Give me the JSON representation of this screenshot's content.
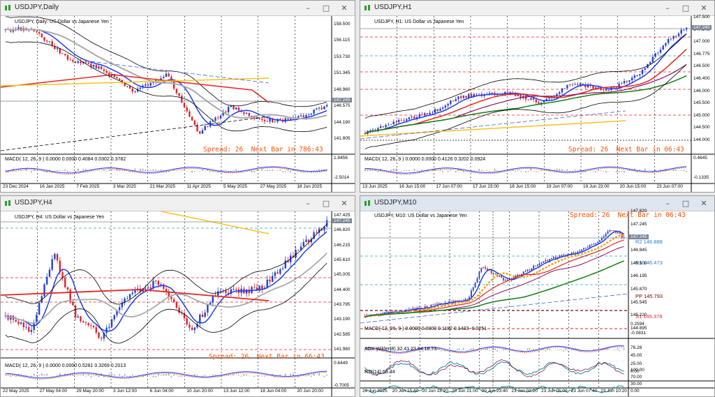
{
  "colors": {
    "bull": "#1f3fd6",
    "bear": "#e0202a",
    "ma_blue": "#1e3cf0",
    "ma_red": "#e52420",
    "ma_gold": "#f7c21a",
    "bb": "#000000",
    "spread": "#ff4f00"
  },
  "windows": {
    "daily": {
      "title": "USDJPY,Daily",
      "symbol_label": "USDJPY, Daily: US Dollar vs Japanese Yen",
      "spread": "Spread: 26  Next Bar in 786:43",
      "macd_label": "MACD( 12, 26, 9 ) 0.0000 0.0000 0.4084 0.0302 0.3782",
      "price_ticks": [
        "158.500",
        "156.115",
        "153.730",
        "151.345",
        "148.960",
        "146.575",
        "144.190",
        "141.805"
      ],
      "current_price": "147.245",
      "macd_ticks": [
        "1.8456",
        "-2.5014"
      ],
      "time_ticks": [
        "23 Dec 2024",
        "16 Jan 2025",
        "7 Feb 2025",
        "3 Mar 2025",
        "21 Mar 2025",
        "11 Apr 2025",
        "5 May 2025",
        "27 May 2025",
        "18 Jun 2025"
      ]
    },
    "h1": {
      "title": "USDJPY,H1",
      "symbol_label": "USDJPY, H1: US Dollar vs Japanese Yen",
      "spread": "Spread: 26  Next Bar in 06:43",
      "macd_label": "MACD( 12, 26, 9 ) 0.0000 0.0000 0.4126 0.3202 0.0924",
      "price_ticks": [
        "147.500",
        "147.245",
        "147.000",
        "146.775",
        "146.500",
        "146.400",
        "146.000",
        "145.500",
        "145.000",
        "144.500",
        "144.000"
      ],
      "current_price": "147.245",
      "macd_ticks": [
        "0.4645",
        "-0.1335"
      ],
      "time_ticks": [
        "13 Jun 2025",
        "16 Jun 15:00",
        "17 Jun 07:00",
        "17 Jun 23:00",
        "18 Jun 15:00",
        "19 Jun 07:00",
        "19 Jun 23:00",
        "20 Jun 15:00",
        "23 Jun 07:00"
      ]
    },
    "h4": {
      "title": "USDJPY,H4",
      "symbol_label": "USDJPY, H4: US Dollar vs Japanese Yen",
      "spread": "Spread: 26  Next Bar in 66:43",
      "macd_label": "MACD( 12, 26, 9 ) 0.0000 0.0000 0.5281 0.3269 0.2013",
      "price_ticks": [
        "147.425",
        "146.820",
        "146.215",
        "145.610",
        "145.005",
        "144.400",
        "143.795",
        "143.190",
        "142.585",
        "141.980"
      ],
      "current_price": "147.245",
      "macd_ticks": [
        "0.6449",
        "-0.7005"
      ],
      "time_ticks": [
        "22 May 2025",
        "27 May 04:00",
        "29 May 20:00",
        "3 Jun 12:00",
        "6 Jun 04:00",
        "10 Jun 20:00",
        "13 Jun 12:00",
        "18 Jun 04:00",
        "20 Jun 20:00"
      ]
    },
    "m10": {
      "title": "USDJPY,M10",
      "symbol_label": "USDJPY, M10: US Dollar vs Japanese Yen",
      "spread": "Spread: 26  Next Bar in 06:43",
      "macd_label": "MACD( 12, 26, 9 ) 0.0000 0.0000 0.1182 0.1433 -0.0251",
      "adx_label": "ADX Wilder(8) 32.41 23.64 18.73",
      "rsi_label": "RSI(14) 63.44",
      "price_ticks": [
        "147.820",
        "147.245",
        "147.170",
        "146.845",
        "146.500",
        "146.195",
        "145.870",
        "145.545",
        "145.220",
        "144.895"
      ],
      "current_price": "147.245",
      "pivots": {
        "r2": "R2 146.888",
        "r1": "R1 146.473",
        "pp": "PP 145.793",
        "s1": "S1 145.378"
      },
      "macd_ticks": [
        "0.2594",
        "-0.0831"
      ],
      "adx_ticks": [
        "76.28",
        "45.00",
        "25.00",
        "0.00"
      ],
      "rsi_ticks": [
        "100.00",
        "70.00",
        "30.00",
        "0.00"
      ],
      "time_ticks": [
        "20 Jun 2025",
        "20 Jun 15:40",
        "20 Jun 18:20",
        "20 Jun 21:00",
        "20 Jun 23:40",
        "23 Jun 02:20",
        "23 Jun 05:00",
        "23 Jun 07:40",
        "23 Jun 10:20"
      ]
    }
  }
}
